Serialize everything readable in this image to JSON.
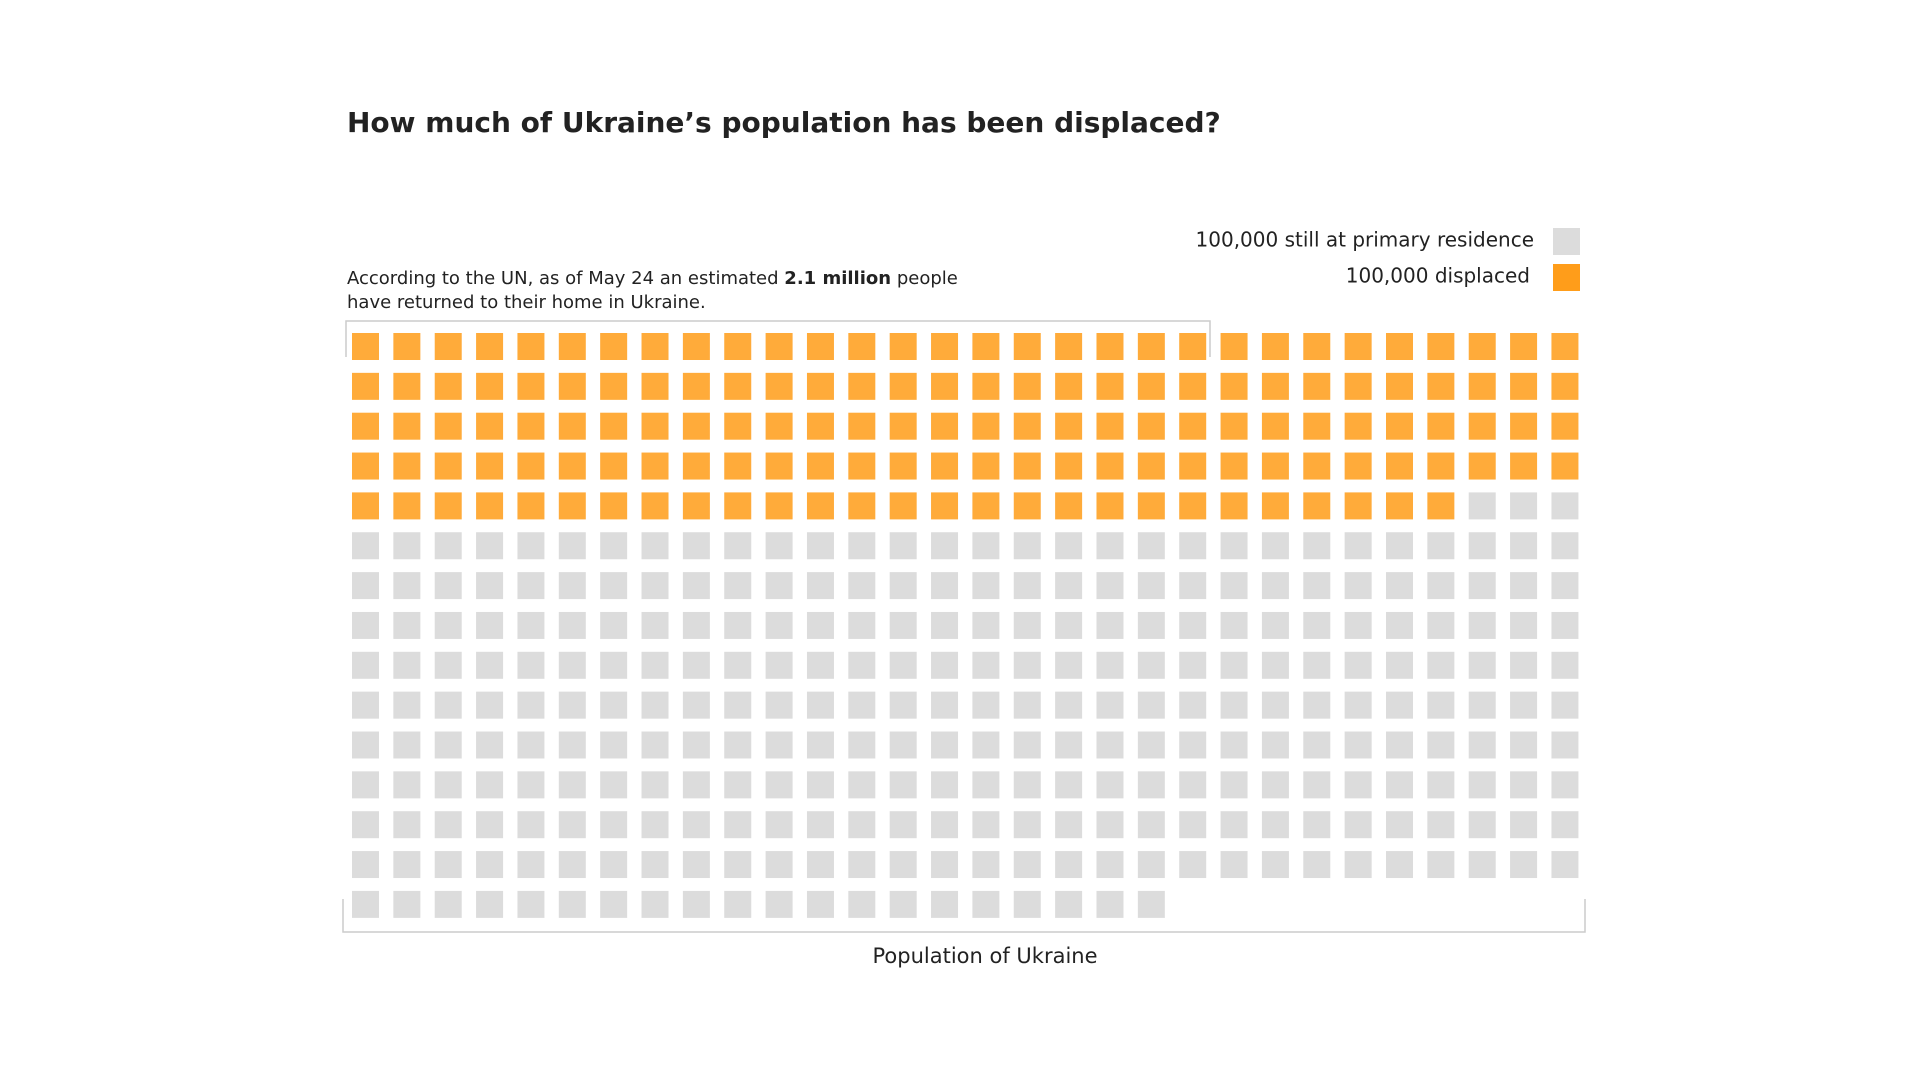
{
  "chart_data": {
    "type": "waffle",
    "title": "How much of Ukraine’s population has been displaced?",
    "annotation": {
      "text_before": "According to the UN, as of May 24 an estimated",
      "text_bold": "2.1 million",
      "text_after": "people",
      "text_line2": "have returned to their home in Ukraine."
    },
    "x_label": "Population of Ukraine",
    "columns": 30,
    "series": [
      {
        "name": "100,000 displaced",
        "color": "#ffab3a",
        "legend_color": "#ff9d1a",
        "values": [
          147
        ]
      },
      {
        "name": "100,000 still at primary residence",
        "color": "#dcdcdc",
        "legend_color": "#dcdcdc",
        "values": [
          293
        ]
      }
    ]
  }
}
